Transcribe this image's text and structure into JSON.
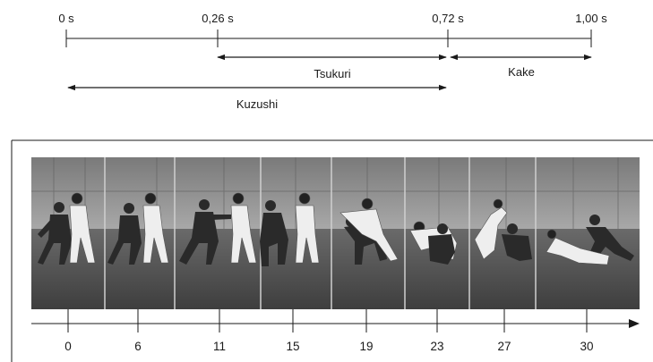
{
  "timeline": {
    "ticks": [
      {
        "label": "0 s",
        "t": 0.0
      },
      {
        "label": "0,26 s",
        "t": 0.26
      },
      {
        "label": "0,72 s",
        "t": 0.72
      },
      {
        "label": "1,00 s",
        "t": 1.0
      }
    ],
    "phases": [
      {
        "label": "Tsukuri",
        "start": 0.26,
        "end": 0.72
      },
      {
        "label": "Kake",
        "start": 0.72,
        "end": 1.0
      },
      {
        "label": "Kuzushi",
        "start": 0.0,
        "end": 0.72
      }
    ]
  },
  "photo_strip": {
    "description_visible": "photo-sequence",
    "frames": [
      "0",
      "6",
      "11",
      "15",
      "19",
      "23",
      "27",
      "30"
    ]
  }
}
